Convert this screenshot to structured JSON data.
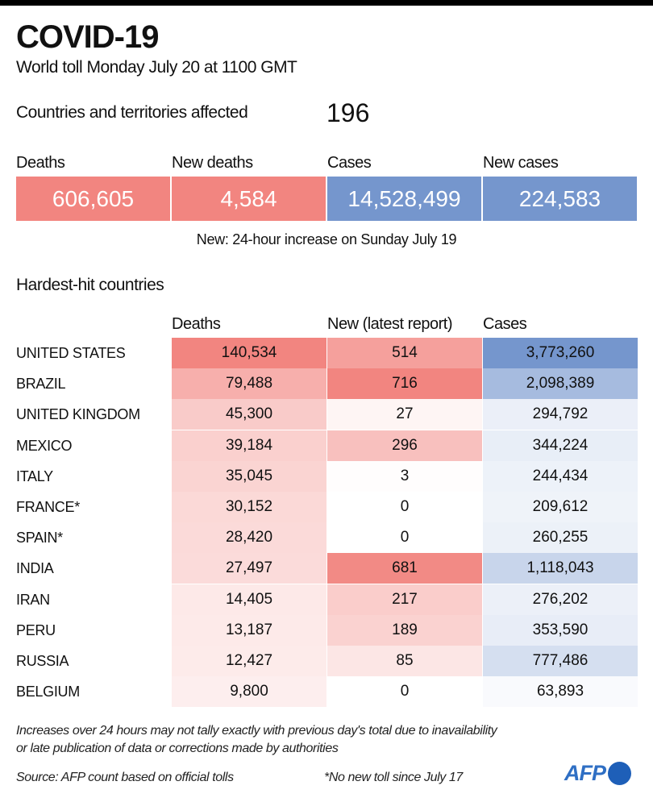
{
  "header": {
    "title": "COVID-19",
    "subtitle": "World toll Monday July 20 at 1100 GMT",
    "countries_label": "Countries and territories affected",
    "countries_value": "196"
  },
  "summary": [
    {
      "label": "Deaths",
      "value": "606,605",
      "color": "#f28580"
    },
    {
      "label": "New deaths",
      "value": "4,584",
      "color": "#f28580"
    },
    {
      "label": "Cases",
      "value": "14,528,499",
      "color": "#7596cd"
    },
    {
      "label": "New cases",
      "value": "224,583",
      "color": "#7596cd"
    }
  ],
  "note": "New: 24-hour increase on Sunday July 19",
  "section_title": "Hardest-hit countries",
  "chart_data": {
    "type": "table",
    "title": "Hardest-hit countries",
    "columns": [
      "Deaths",
      "New (latest report)",
      "Cases"
    ],
    "rows": [
      {
        "country": "UNITED STATES",
        "deaths": "140,534",
        "new": "514",
        "cases": "3,773,260"
      },
      {
        "country": "BRAZIL",
        "deaths": "79,488",
        "new": "716",
        "cases": "2,098,389"
      },
      {
        "country": "UNITED KINGDOM",
        "deaths": "45,300",
        "new": "27",
        "cases": "294,792"
      },
      {
        "country": "MEXICO",
        "deaths": "39,184",
        "new": "296",
        "cases": "344,224"
      },
      {
        "country": "ITALY",
        "deaths": "35,045",
        "new": "3",
        "cases": "244,434"
      },
      {
        "country": "FRANCE*",
        "deaths": "30,152",
        "new": "0",
        "cases": "209,612"
      },
      {
        "country": "SPAIN*",
        "deaths": "28,420",
        "new": "0",
        "cases": "260,255"
      },
      {
        "country": "INDIA",
        "deaths": "27,497",
        "new": "681",
        "cases": "1,118,043"
      },
      {
        "country": "IRAN",
        "deaths": "14,405",
        "new": "217",
        "cases": "276,202"
      },
      {
        "country": "PERU",
        "deaths": "13,187",
        "new": "189",
        "cases": "353,590"
      },
      {
        "country": "RUSSIA",
        "deaths": "12,427",
        "new": "85",
        "cases": "777,486"
      },
      {
        "country": "BELGIUM",
        "deaths": "9,800",
        "new": "0",
        "cases": "63,893"
      }
    ],
    "colors": {
      "deaths_max": "#f28580",
      "new_max": "#f28580",
      "cases_max": "#7596cd"
    }
  },
  "footer": {
    "disclaimer_line1": "Increases over 24 hours may not tally exactly with previous day's total due to inavailability",
    "disclaimer_line2": "or late publication of data or corrections made by authorities",
    "source": "Source: AFP count based on official tolls",
    "asterisk_note": "*No new toll since July 17",
    "logo_text": "AFP"
  }
}
